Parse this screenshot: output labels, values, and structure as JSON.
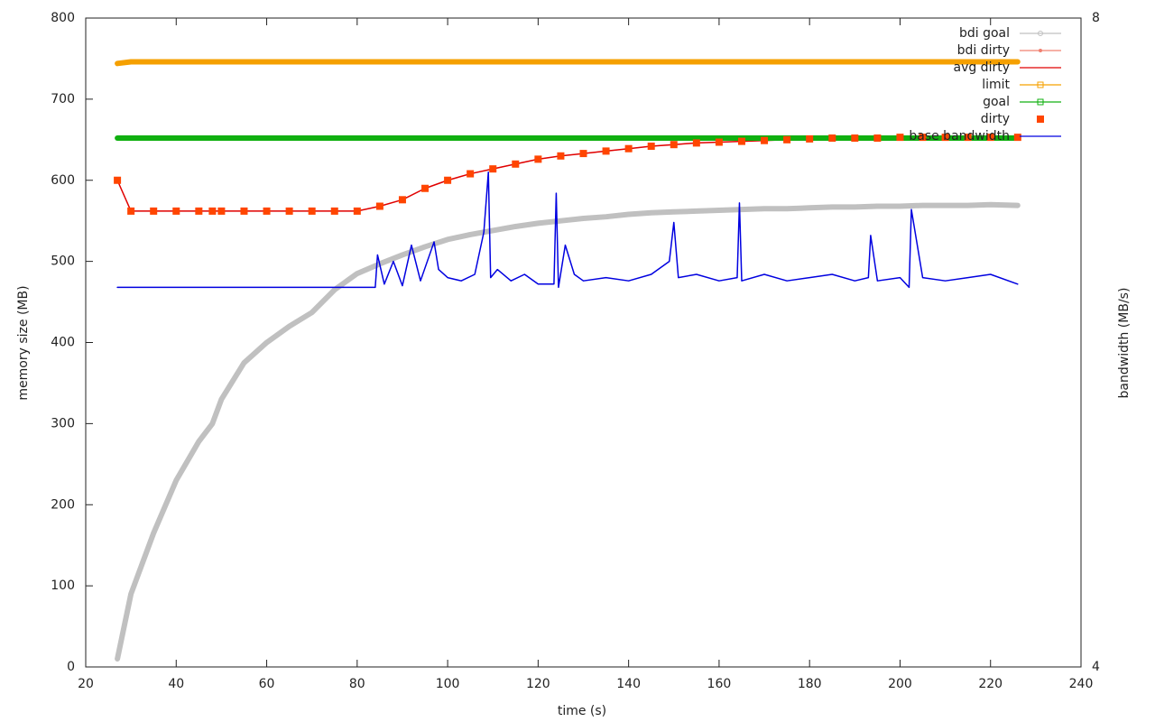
{
  "chart_data": {
    "type": "line",
    "xlabel": "time (s)",
    "ylabel": "memory size (MB)",
    "y2label": "bandwidth (MB/s)",
    "xlim": [
      20,
      240
    ],
    "xticks": [
      20,
      40,
      60,
      80,
      100,
      120,
      140,
      160,
      180,
      200,
      220,
      240
    ],
    "ylim": [
      0,
      800
    ],
    "yticks": [
      0,
      100,
      200,
      300,
      400,
      500,
      600,
      700,
      800
    ],
    "y2lim": [
      4,
      8
    ],
    "y2ticks": [
      4,
      8
    ],
    "legend": "top-right",
    "grid": false,
    "x": [
      27,
      30,
      35,
      40,
      45,
      48,
      50,
      55,
      60,
      65,
      70,
      75,
      80,
      85,
      90,
      95,
      100,
      105,
      110,
      115,
      120,
      125,
      130,
      135,
      140,
      145,
      150,
      155,
      160,
      165,
      170,
      175,
      180,
      185,
      190,
      195,
      200,
      205,
      210,
      215,
      220,
      226
    ],
    "series": [
      {
        "name": "bdi goal",
        "color": "#c0c0c0",
        "style": "linespoints",
        "point": "circle",
        "values": [
          10,
          90,
          165,
          230,
          278,
          300,
          330,
          375,
          400,
          420,
          437,
          465,
          485,
          497,
          508,
          518,
          527,
          533,
          538,
          543,
          547,
          550,
          553,
          555,
          558,
          560,
          561,
          562,
          563,
          564,
          565,
          565,
          566,
          567,
          567,
          568,
          568,
          569,
          569,
          569,
          570,
          569
        ]
      },
      {
        "name": "bdi dirty",
        "color": "#f08070",
        "style": "linespoints",
        "point": "dot",
        "values": [
          600,
          562,
          562,
          562,
          562,
          562,
          562,
          562,
          562,
          562,
          562,
          562,
          562,
          568,
          576,
          590,
          600,
          608,
          614,
          620,
          626,
          630,
          633,
          636,
          639,
          642,
          644,
          646,
          647,
          648,
          649,
          650,
          651,
          652,
          652,
          652,
          653,
          653,
          653,
          653,
          653,
          653
        ]
      },
      {
        "name": "avg dirty",
        "color": "#e00000",
        "style": "lines",
        "values": [
          600,
          562,
          562,
          562,
          562,
          562,
          562,
          562,
          562,
          562,
          562,
          562,
          562,
          568,
          576,
          590,
          600,
          608,
          614,
          620,
          626,
          630,
          633,
          636,
          639,
          642,
          644,
          646,
          647,
          648,
          649,
          650,
          651,
          652,
          652,
          652,
          653,
          653,
          653,
          653,
          653,
          653
        ]
      },
      {
        "name": "limit",
        "color": "#f5a000",
        "style": "linespoints",
        "point": "square",
        "values": [
          744,
          746,
          746,
          746,
          746,
          746,
          746,
          746,
          746,
          746,
          746,
          746,
          746,
          746,
          746,
          746,
          746,
          746,
          746,
          746,
          746,
          746,
          746,
          746,
          746,
          746,
          746,
          746,
          746,
          746,
          746,
          746,
          746,
          746,
          746,
          746,
          746,
          746,
          746,
          746,
          746,
          746
        ]
      },
      {
        "name": "goal",
        "color": "#10b010",
        "style": "linespoints",
        "point": "square",
        "values": [
          652,
          652,
          652,
          652,
          652,
          652,
          652,
          652,
          652,
          652,
          652,
          652,
          652,
          652,
          652,
          652,
          652,
          652,
          652,
          652,
          652,
          652,
          652,
          652,
          652,
          652,
          652,
          652,
          652,
          652,
          652,
          652,
          652,
          652,
          652,
          652,
          652,
          652,
          652,
          652,
          652,
          652
        ]
      },
      {
        "name": "dirty",
        "color": "#ff4500",
        "style": "points",
        "point": "filled-square",
        "values": [
          600,
          562,
          562,
          562,
          562,
          562,
          562,
          562,
          562,
          562,
          562,
          562,
          562,
          568,
          576,
          590,
          600,
          608,
          614,
          620,
          626,
          630,
          633,
          636,
          639,
          642,
          644,
          646,
          647,
          648,
          649,
          650,
          651,
          652,
          652,
          652,
          653,
          653,
          653,
          653,
          653,
          653
        ]
      },
      {
        "name": "base bandwidth",
        "color": "#0000e0",
        "style": "lines",
        "axis": "y2",
        "x": [
          27,
          84,
          84.5,
          86,
          88,
          90,
          92,
          94,
          97,
          98,
          100,
          103,
          106,
          108,
          109,
          109.5,
          111,
          114,
          117,
          120,
          123.5,
          124,
          124.5,
          126,
          128,
          130,
          135,
          140,
          145,
          149,
          150,
          151,
          155,
          160,
          164,
          164.5,
          165,
          170,
          175,
          180,
          185,
          190,
          193,
          193.5,
          195,
          200,
          202,
          202.5,
          205,
          210,
          215,
          220,
          226
        ],
        "values": [
          6.34,
          6.34,
          6.54,
          6.36,
          6.5,
          6.35,
          6.6,
          6.38,
          6.62,
          6.45,
          6.4,
          6.38,
          6.42,
          6.68,
          7.05,
          6.4,
          6.45,
          6.38,
          6.42,
          6.36,
          6.36,
          6.92,
          6.34,
          6.6,
          6.42,
          6.38,
          6.4,
          6.38,
          6.42,
          6.5,
          6.74,
          6.4,
          6.42,
          6.38,
          6.4,
          6.86,
          6.38,
          6.42,
          6.38,
          6.4,
          6.42,
          6.38,
          6.4,
          6.66,
          6.38,
          6.4,
          6.34,
          6.82,
          6.4,
          6.38,
          6.4,
          6.42,
          6.36
        ]
      }
    ]
  }
}
